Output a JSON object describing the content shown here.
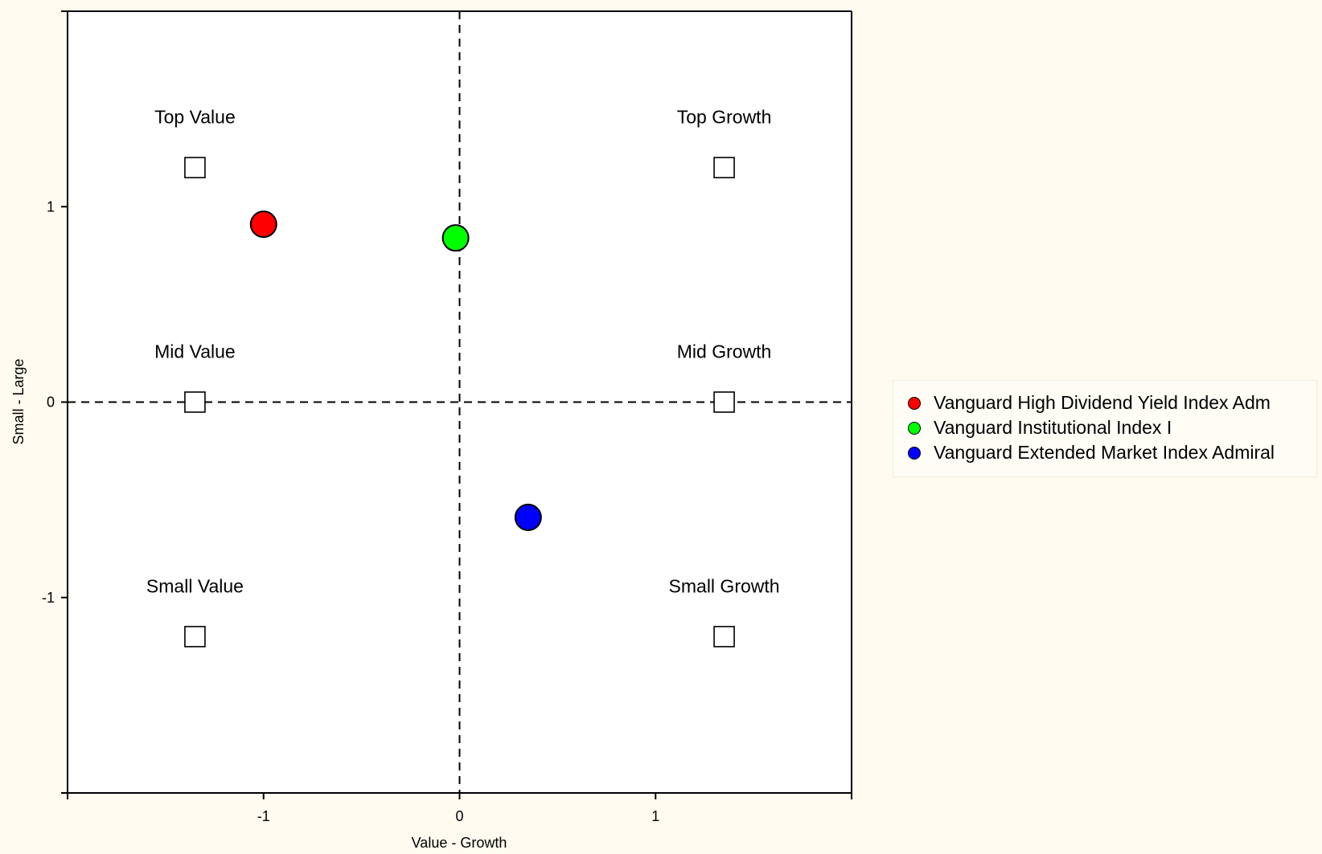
{
  "chart_data": {
    "type": "scatter",
    "xlabel": "Value - Growth",
    "ylabel": "Small - Large",
    "xlim": [
      -2,
      2
    ],
    "ylim": [
      -2,
      2
    ],
    "x_ticks": [
      -1,
      0,
      1
    ],
    "y_ticks": [
      1,
      0,
      -1
    ],
    "x_tick_labels": [
      "-1",
      "0",
      "1"
    ],
    "y_tick_labels": [
      "1",
      "0",
      "-1"
    ],
    "reference_lines": [
      {
        "axis": "x",
        "value": 0,
        "style": "dashed"
      },
      {
        "axis": "y",
        "value": 0,
        "style": "dashed"
      }
    ],
    "style_boxes": [
      {
        "label": "Top Value",
        "x": -1.35,
        "y": 1.2
      },
      {
        "label": "Top Growth",
        "x": 1.35,
        "y": 1.2
      },
      {
        "label": "Mid Value",
        "x": -1.35,
        "y": 0
      },
      {
        "label": "Mid Growth",
        "x": 1.35,
        "y": 0
      },
      {
        "label": "Small Value",
        "x": -1.35,
        "y": -1.2
      },
      {
        "label": "Small Growth",
        "x": 1.35,
        "y": -1.2
      }
    ],
    "series": [
      {
        "name": "Vanguard High Dividend Yield Index Adm",
        "color": "#ff0000",
        "x": -1.0,
        "y": 0.91
      },
      {
        "name": "Vanguard Institutional Index I",
        "color": "#00ff00",
        "x": -0.02,
        "y": 0.84
      },
      {
        "name": "Vanguard Extended Market Index Admiral",
        "color": "#0000ff",
        "x": 0.35,
        "y": -0.59
      }
    ],
    "grid": false,
    "legend_position": "right"
  }
}
